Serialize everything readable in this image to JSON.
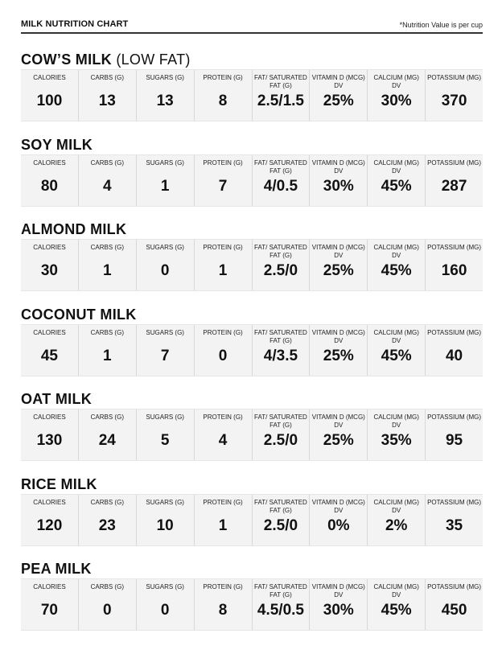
{
  "header": {
    "title": "MILK NUTRITION CHART",
    "note": "*Nutrition Value is per cup"
  },
  "columns": [
    "CALORIES",
    "CARBS (G)",
    "SUGARS (G)",
    "PROTEIN (G)",
    "FAT/ SATURATED FAT (G)",
    "VITAMIN D (MCG) DV",
    "CALCIUM (MG) DV",
    "POTASSIUM (MG)"
  ],
  "milks": [
    {
      "name": "COW’S MILK",
      "qualifier": "(LOW FAT)",
      "values": [
        "100",
        "13",
        "13",
        "8",
        "2.5/1.5",
        "25%",
        "30%",
        "370"
      ]
    },
    {
      "name": "SOY MILK",
      "qualifier": "",
      "values": [
        "80",
        "4",
        "1",
        "7",
        "4/0.5",
        "30%",
        "45%",
        "287"
      ]
    },
    {
      "name": "ALMOND MILK",
      "qualifier": "",
      "values": [
        "30",
        "1",
        "0",
        "1",
        "2.5/0",
        "25%",
        "45%",
        "160"
      ]
    },
    {
      "name": "COCONUT MILK",
      "qualifier": "",
      "values": [
        "45",
        "1",
        "7",
        "0",
        "4/3.5",
        "25%",
        "45%",
        "40"
      ]
    },
    {
      "name": "OAT MILK",
      "qualifier": "",
      "values": [
        "130",
        "24",
        "5",
        "4",
        "2.5/0",
        "25%",
        "35%",
        "95"
      ]
    },
    {
      "name": "RICE MILK",
      "qualifier": "",
      "values": [
        "120",
        "23",
        "10",
        "1",
        "2.5/0",
        "0%",
        "2%",
        "35"
      ]
    },
    {
      "name": "PEA MILK",
      "qualifier": "",
      "values": [
        "70",
        "0",
        "0",
        "8",
        "4.5/0.5",
        "30%",
        "45%",
        "450"
      ]
    }
  ]
}
